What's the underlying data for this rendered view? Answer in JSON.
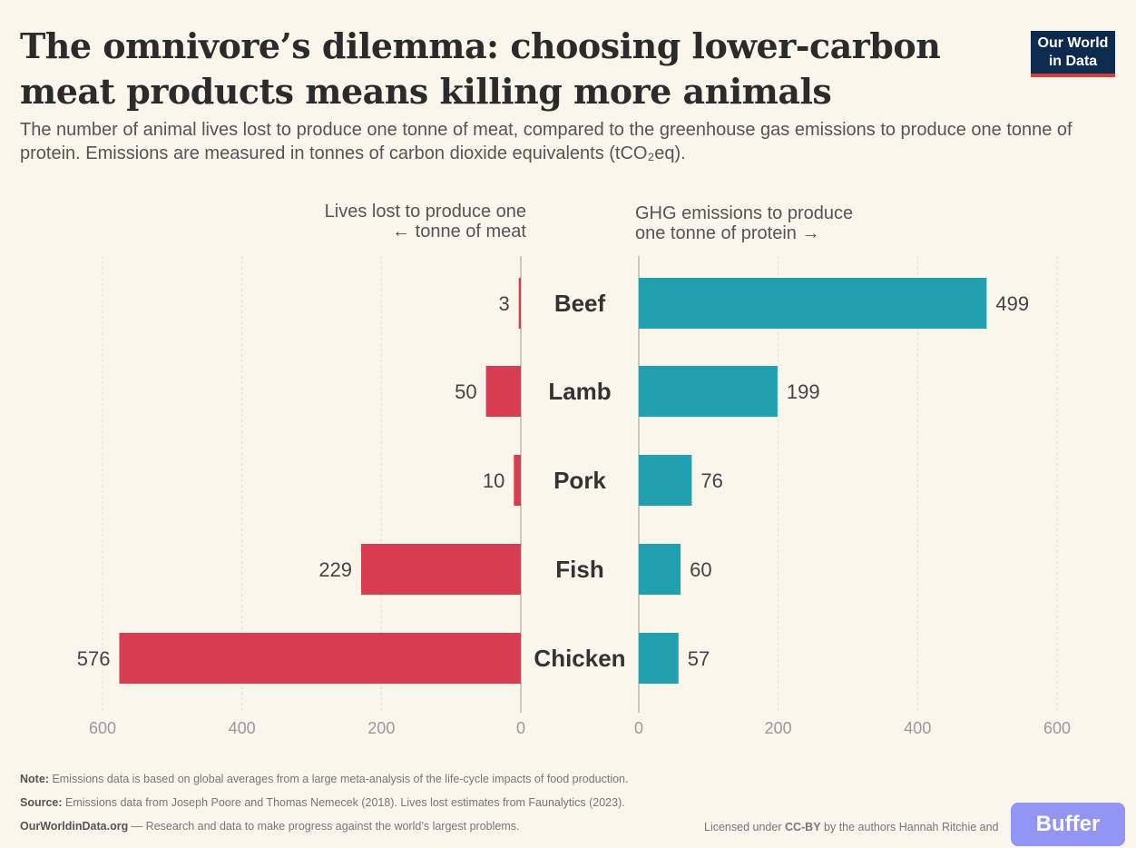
{
  "header": {
    "title": "The omnivore’s dilemma: choosing lower-carbon meat products means killing more animals",
    "subtitle": "The number of animal lives lost to produce one tonne of meat, compared to the greenhouse gas emissions to produce one tonne of protein. Emissions are measured in tonnes of carbon dioxide equivalents (tCO₂eq)."
  },
  "logo": {
    "line1": "Our World",
    "line2": "in Data"
  },
  "chart_data": [
    {
      "type": "bar",
      "orientation": "horizontal",
      "direction": "leftward",
      "xlabel_line1": "Lives lost to produce one",
      "xlabel_line2": "← tonne of meat",
      "categories": [
        "Beef",
        "Lamb",
        "Pork",
        "Fish",
        "Chicken"
      ],
      "values": [
        3,
        50,
        10,
        229,
        576
      ],
      "value_labels": [
        "3",
        "50",
        "10",
        "229",
        "576"
      ],
      "xlim": [
        0,
        600
      ],
      "ticks": [
        "600",
        "400",
        "200",
        "0"
      ],
      "tick_values": [
        600,
        400,
        200,
        0
      ],
      "color": "#d73c50",
      "grid": true
    },
    {
      "type": "bar",
      "orientation": "horizontal",
      "direction": "rightward",
      "xlabel_line1": "GHG emissions to produce",
      "xlabel_line2": "one tonne of protein →",
      "categories": [
        "Beef",
        "Lamb",
        "Pork",
        "Fish",
        "Chicken"
      ],
      "values": [
        499,
        199,
        76,
        60,
        57
      ],
      "value_labels": [
        "499",
        "199",
        "76",
        "60",
        "57"
      ],
      "xlim": [
        0,
        600
      ],
      "ticks": [
        "0",
        "200",
        "400",
        "600"
      ],
      "tick_values": [
        0,
        200,
        400,
        600
      ],
      "color": "#21a0b0",
      "grid": true
    }
  ],
  "footer": {
    "note_label": "Note:",
    "note_text": " Emissions data is based on global averages from a large meta-analysis of the life-cycle impacts of food production.",
    "source_label": "Source:",
    "source_text": " Emissions data from Joseph Poore and Thomas Nemecek (2018). Lives lost estimates from Faunalytics (2023).",
    "site_label": "OurWorldinData.org",
    "site_text": " — Research and data to make progress against the world’s largest problems.",
    "license_prefix": "Licensed under ",
    "license_link": "CC-BY",
    "license_suffix": " by the authors Hannah Ritchie and"
  },
  "watermark": {
    "label": "Buffer"
  }
}
